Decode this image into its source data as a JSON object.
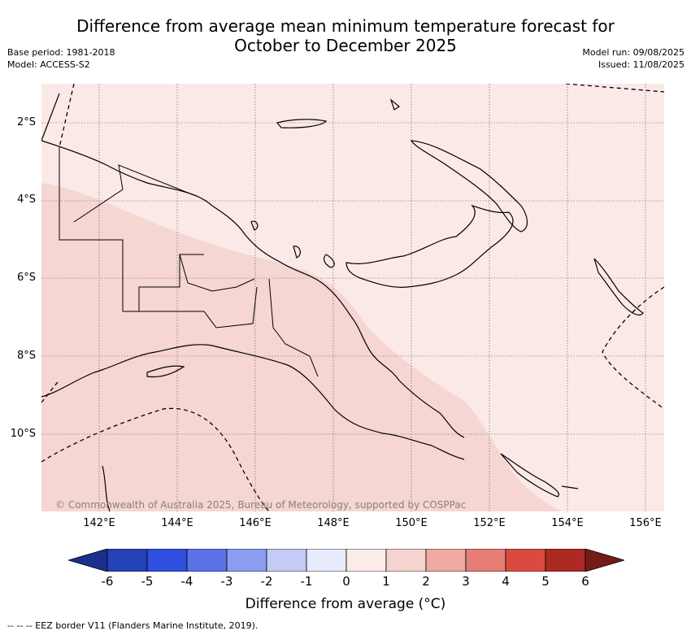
{
  "title": {
    "line1": "Difference from average mean minimum temperature forecast for",
    "line2": "October to December 2025"
  },
  "meta": {
    "base_period": "Base period: 1981-2018",
    "model": "Model: ACCESS-S2",
    "model_run": "Model run: 09/08/2025",
    "issued": "Issued: 11/08/2025"
  },
  "map": {
    "lat_labels": [
      "2°S",
      "4°S",
      "6°S",
      "8°S",
      "10°S"
    ],
    "lon_labels": [
      "142°E",
      "144°E",
      "146°E",
      "148°E",
      "150°E",
      "152°E",
      "154°E",
      "156°E"
    ],
    "copyright": "© Commonwealth of Australia 2025, Bureau of Meteorology, supported by COSPPac",
    "anomaly_fill": {
      "band_0_to_1": "#fbe9e7",
      "band_1_to_2": "#f5d6d2"
    }
  },
  "colorbar": {
    "ticks": [
      "-6",
      "-5",
      "-4",
      "-3",
      "-2",
      "-1",
      "0",
      "1",
      "2",
      "3",
      "4",
      "5",
      "6"
    ],
    "colors": [
      "#1b2f8f",
      "#2441b8",
      "#2e4fdf",
      "#5a72e6",
      "#8c9cee",
      "#c4cbf6",
      "#e8ebfb",
      "#fcece9",
      "#f5d3cf",
      "#f0aaa3",
      "#e77e75",
      "#db4a3f",
      "#ad2a22",
      "#741c17"
    ],
    "label": "Difference from average (°C)"
  },
  "footer": "-- -- -- EEZ border V11 (Flanders Marine Institute, 2019)."
}
